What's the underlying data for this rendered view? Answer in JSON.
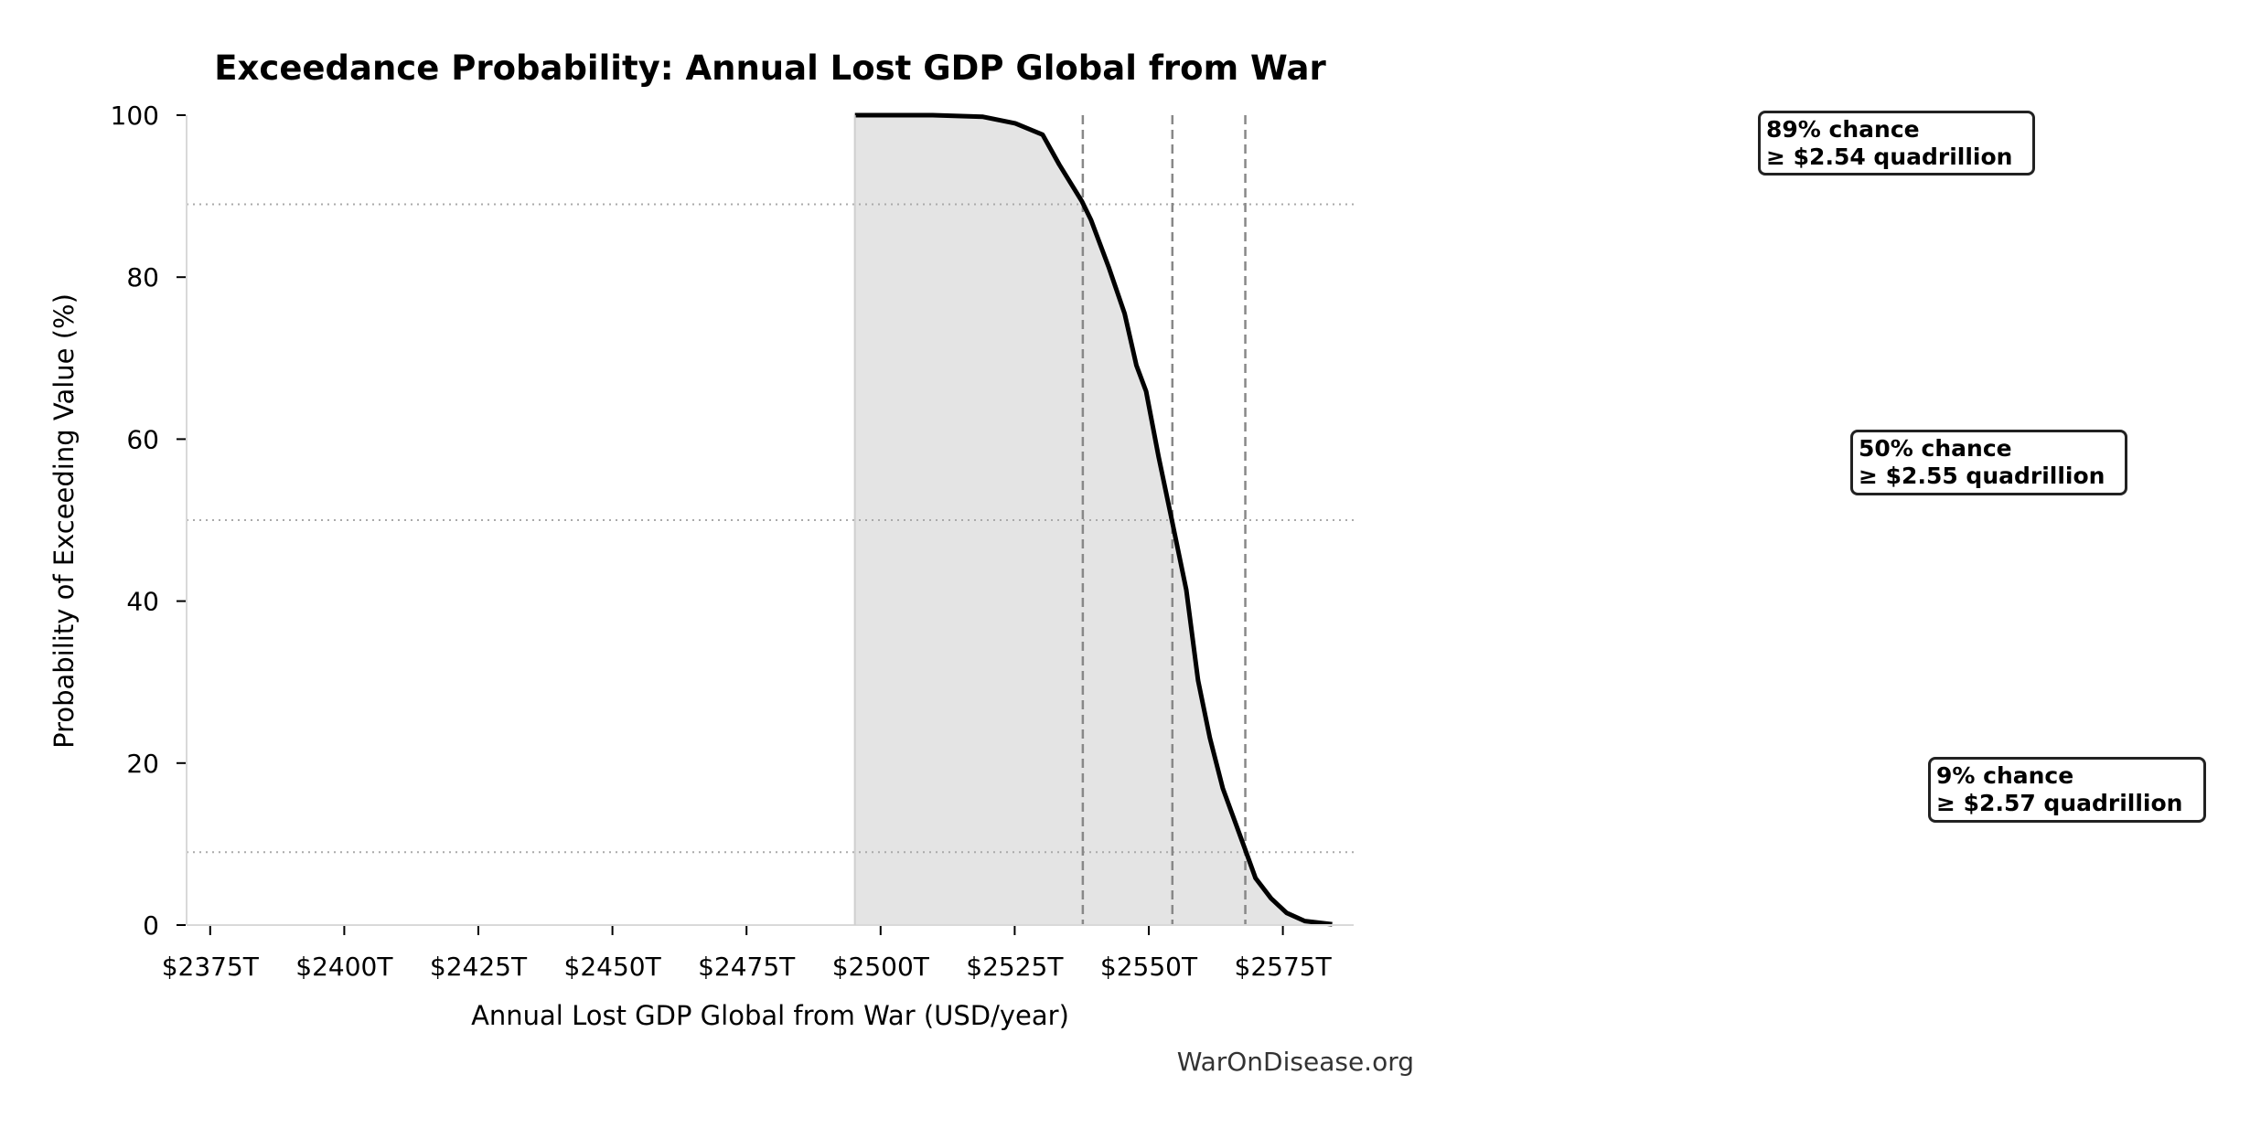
{
  "chart_data": {
    "type": "area",
    "title": "Exceedance Probability: Annual Lost GDP Global from War",
    "xlabel": "Annual Lost GDP Global from War (USD/year)",
    "ylabel": "Probability of Exceeding Value (%)",
    "x_unit": "trillion USD",
    "xlim": [
      2370.6,
      2588.2
    ],
    "ylim": [
      0,
      100
    ],
    "x_ticks": [
      2375,
      2400,
      2425,
      2450,
      2475,
      2500,
      2525,
      2550,
      2575
    ],
    "x_tick_labels": [
      "$2375T",
      "$2400T",
      "$2425T",
      "$2450T",
      "$2475T",
      "$2500T",
      "$2525T",
      "$2550T",
      "$2575T"
    ],
    "y_ticks": [
      0,
      20,
      40,
      60,
      80,
      100
    ],
    "y_tick_labels": [
      "0",
      "20",
      "40",
      "60",
      "80",
      "100"
    ],
    "grid": false,
    "series": [
      {
        "name": "Exceedance curve",
        "color": "#000000",
        "fill_color": "#e4e4e4",
        "points": [
          [
            2495.2,
            100
          ],
          [
            2509.7,
            100
          ],
          [
            2519.1,
            99.8
          ],
          [
            2525.1,
            99.0
          ],
          [
            2530.2,
            97.6
          ],
          [
            2533.3,
            93.9
          ],
          [
            2537.5,
            89.4
          ],
          [
            2539.2,
            87.1
          ],
          [
            2542.5,
            81.3
          ],
          [
            2545.5,
            75.5
          ],
          [
            2547.7,
            69.1
          ],
          [
            2549.5,
            65.9
          ],
          [
            2551.8,
            57.9
          ],
          [
            2554.4,
            49.7
          ],
          [
            2557.0,
            41.4
          ],
          [
            2559.2,
            30.2
          ],
          [
            2561.4,
            23.1
          ],
          [
            2563.8,
            16.9
          ],
          [
            2565.5,
            13.8
          ],
          [
            2568.0,
            9.3
          ],
          [
            2569.9,
            5.8
          ],
          [
            2572.8,
            3.3
          ],
          [
            2575.7,
            1.5
          ],
          [
            2579.1,
            0.5
          ],
          [
            2584.2,
            0.1
          ]
        ]
      }
    ],
    "reference_lines": {
      "horizontal_pct": [
        89,
        50,
        9
      ],
      "vertical_x": [
        2537.7,
        2554.4,
        2568.0
      ],
      "horizontal_style": "dotted",
      "vertical_style": "dashed",
      "color": "#888888"
    },
    "annotations": [
      {
        "pct": 89,
        "line1": "89% chance",
        "line2": "≥ $2.54 quadrillion"
      },
      {
        "pct": 50,
        "line1": "50% chance",
        "line2": "≥ $2.55 quadrillion"
      },
      {
        "pct": 9,
        "line1": "9% chance",
        "line2": "≥ $2.57 quadrillion"
      }
    ],
    "footer": "WarOnDisease.org"
  }
}
